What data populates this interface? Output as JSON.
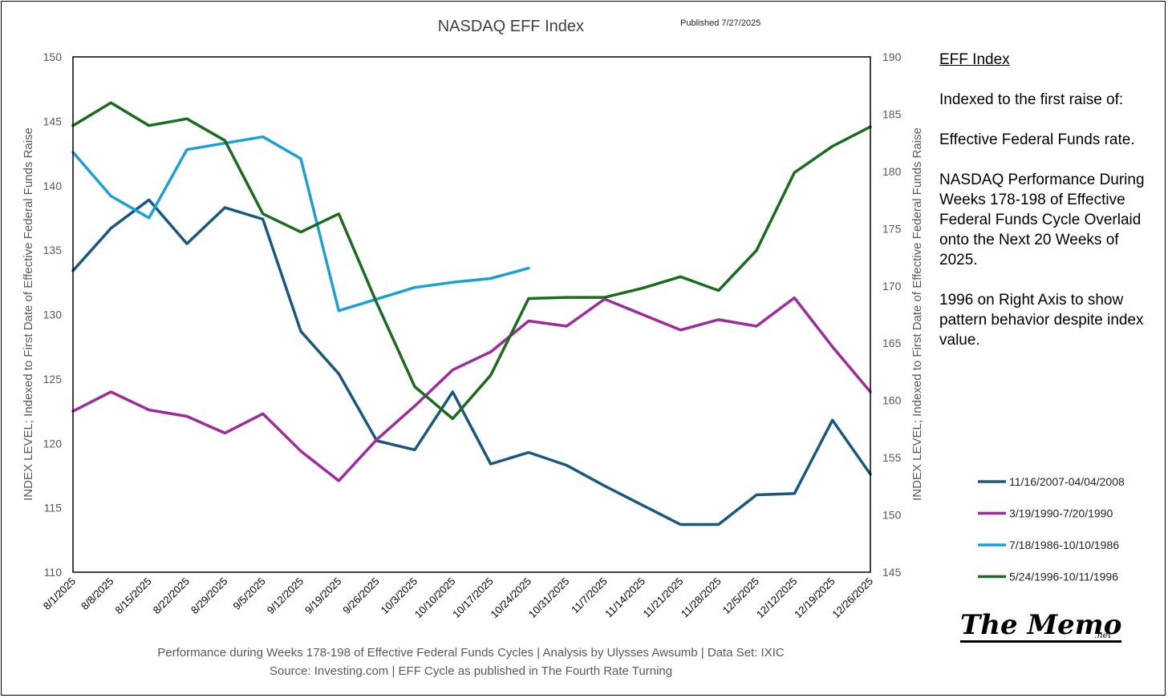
{
  "chart_data": {
    "type": "line",
    "title": "NASDAQ EFF Index",
    "published": "Published 7/27/2025",
    "ylabel_left": "INDEX LEVEL; Indexed to First Date of Effective Federal Funds Raise",
    "ylabel_right": "INDEX LEVEL; Indexed to First Date of Effective Federal Funds Raise",
    "ylim_left": [
      110,
      150
    ],
    "ylim_right": [
      145,
      190
    ],
    "yticks_left": [
      110,
      115,
      120,
      125,
      130,
      135,
      140,
      145,
      150
    ],
    "yticks_right": [
      145,
      150,
      155,
      160,
      165,
      170,
      175,
      180,
      185,
      190
    ],
    "categories": [
      "8/1/2025",
      "8/8/2025",
      "8/15/2025",
      "8/22/2025",
      "8/29/2025",
      "9/5/2025",
      "9/12/2025",
      "9/19/2025",
      "9/26/2025",
      "10/3/2025",
      "10/10/2025",
      "10/17/2025",
      "10/24/2025",
      "10/31/2025",
      "11/7/2025",
      "11/14/2025",
      "11/21/2025",
      "11/28/2025",
      "12/5/2025",
      "12/12/2025",
      "12/19/2025",
      "12/26/2025"
    ],
    "series": [
      {
        "name": "11/16/2007-04/04/2008",
        "axis": "left",
        "color": "#17587e",
        "values": [
          133.4,
          136.7,
          138.9,
          135.5,
          138.3,
          137.4,
          128.7,
          125.4,
          120.2,
          119.5,
          124.0,
          118.4,
          119.3,
          118.3,
          116.7,
          115.2,
          113.7,
          113.7,
          116.0,
          116.1,
          121.8,
          117.6
        ]
      },
      {
        "name": "3/19/1990-7/20/1990",
        "axis": "left",
        "color": "#9c2c9b",
        "values": [
          122.5,
          124.0,
          122.6,
          122.1,
          120.8,
          122.3,
          119.4,
          117.1,
          120.3,
          122.9,
          125.7,
          127.1,
          129.5,
          129.1,
          131.2,
          130.0,
          128.8,
          129.6,
          129.1,
          131.3,
          127.5,
          124.0
        ]
      },
      {
        "name": "7/18/1986-10/10/1986",
        "axis": "left",
        "color": "#1ba0d6",
        "values": [
          142.6,
          139.2,
          137.5,
          142.8,
          143.3,
          143.8,
          142.1,
          130.3,
          131.2,
          132.1,
          132.5,
          132.8,
          133.6,
          null,
          null,
          null,
          null,
          null,
          null,
          null,
          null,
          null
        ]
      },
      {
        "name": "5/24/1996-10/11/1996",
        "axis": "right",
        "color": "#1a6b1d",
        "values": [
          184.0,
          186.0,
          184.0,
          184.6,
          182.7,
          176.3,
          174.7,
          176.3,
          168.5,
          161.2,
          158.4,
          162.2,
          168.9,
          169.0,
          169.0,
          169.8,
          170.8,
          169.6,
          173.1,
          179.9,
          182.2,
          183.9
        ]
      }
    ],
    "legend_position": "bottom-right"
  },
  "footer": {
    "line1": "Performance during Weeks 178-198 of Effective Federal Funds Cycles  |  Analysis  by Ulysses Awsumb  |  Data Set: IXIC",
    "line2": "Source: Investing.com  |  EFF Cycle as published in The Fourth Rate Turning"
  },
  "side_note": {
    "heading": "EFF Index",
    "p1": "Indexed to the first raise of:",
    "p2": "Effective Federal Funds rate.",
    "p3": "NASDAQ Performance During Weeks 178-198 of Effective Federal Funds Cycle Overlaid onto the Next 20 Weeks of 2025.",
    "p4": "1996 on Right Axis to show pattern behavior despite index value."
  },
  "brand": {
    "name": "The Memo",
    "suffix": ".net"
  }
}
